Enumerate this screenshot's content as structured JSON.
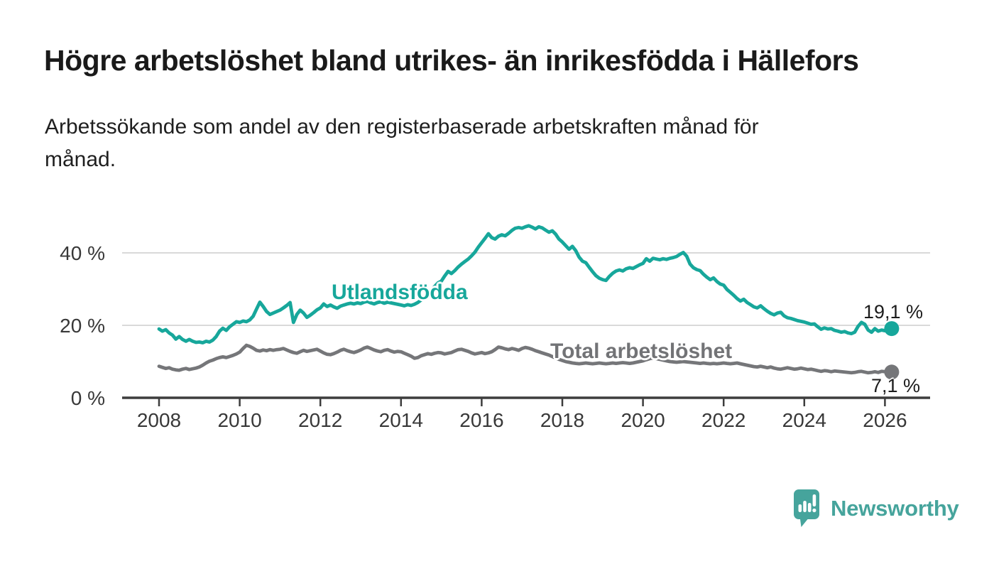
{
  "header": {
    "title": "Högre arbetslöshet bland utrikes- än inrikesfödda i Hällefors",
    "subtitle": "Arbetssökande som andel av den registerbaserade arbetskraften månad för\nmånad."
  },
  "annotations": {
    "series1_label": "Utlandsfödda",
    "series2_label": "Total arbetslöshet",
    "series1_end_value": "19,1 %",
    "series2_end_value": "7,1 %"
  },
  "logo": {
    "text": "Newsworthy",
    "icon": "speech-bubble-bar-chart-icon",
    "color": "#46a49c"
  },
  "colors": {
    "series1": "#17a79b",
    "series2": "#757679",
    "grid": "#d9d9d9",
    "axis": "#3d3d3d",
    "tick_text": "#383838"
  },
  "chart_data": {
    "type": "line",
    "title": "Högre arbetslöshet bland utrikes- än inrikesfödda i Hällefors",
    "xlabel": "",
    "ylabel": "Arbetssökande som andel av den registerbaserade arbetskraften",
    "x_unit": "month",
    "x_start": "2008-01",
    "x_end": "2026-03",
    "x_ticks": [
      2008,
      2010,
      2012,
      2014,
      2016,
      2018,
      2020,
      2022,
      2024,
      2026
    ],
    "y_ticks": [
      {
        "value": 0,
        "label": "0 %"
      },
      {
        "value": 20,
        "label": "20 %"
      },
      {
        "value": 40,
        "label": "40 %"
      }
    ],
    "ylim": [
      0,
      52
    ],
    "grid": "horizontal",
    "legend_position": "inline-labels",
    "series": [
      {
        "name": "Utlandsfödda",
        "color": "#17a79b",
        "end_label": "19,1 %",
        "end_value": 19.1,
        "values": [
          19.0,
          18.4,
          18.8,
          17.9,
          17.3,
          16.2,
          16.9,
          16.1,
          15.6,
          16.1,
          15.6,
          15.3,
          15.4,
          15.2,
          15.6,
          15.4,
          15.9,
          16.9,
          18.4,
          19.2,
          18.6,
          19.6,
          20.3,
          21.0,
          20.8,
          21.2,
          21.0,
          21.5,
          22.5,
          24.5,
          26.4,
          25.2,
          23.8,
          23.0,
          23.4,
          23.8,
          24.2,
          24.8,
          25.5,
          26.3,
          20.8,
          23.0,
          24.2,
          23.4,
          22.2,
          22.8,
          23.5,
          24.3,
          24.8,
          25.9,
          25.2,
          25.6,
          25.1,
          24.7,
          25.3,
          25.6,
          25.9,
          26.1,
          25.9,
          26.2,
          26.0,
          26.4,
          26.6,
          26.2,
          25.9,
          26.3,
          26.5,
          26.1,
          26.4,
          26.2,
          26.0,
          25.8,
          25.6,
          25.4,
          25.7,
          25.5,
          25.8,
          26.3,
          27.0,
          27.7,
          28.7,
          29.7,
          30.7,
          31.7,
          32.2,
          33.6,
          34.9,
          34.3,
          35.1,
          36.1,
          36.9,
          37.6,
          38.3,
          39.2,
          40.2,
          41.6,
          42.8,
          44.0,
          45.3,
          44.2,
          43.8,
          44.6,
          45.0,
          44.7,
          45.4,
          46.2,
          46.8,
          47.0,
          46.8,
          47.2,
          47.5,
          47.1,
          46.6,
          47.2,
          46.9,
          46.3,
          45.7,
          46.1,
          45.2,
          43.8,
          43.0,
          42.0,
          41.0,
          41.8,
          40.6,
          38.8,
          37.7,
          37.3,
          36.0,
          34.8,
          33.7,
          33.0,
          32.6,
          32.4,
          33.5,
          34.4,
          35.0,
          35.3,
          35.0,
          35.6,
          35.9,
          35.7,
          36.2,
          36.7,
          37.1,
          38.4,
          37.7,
          38.5,
          38.3,
          38.1,
          38.4,
          38.2,
          38.5,
          38.7,
          39.0,
          39.6,
          40.1,
          39.1,
          36.9,
          35.9,
          35.4,
          35.1,
          34.1,
          33.3,
          32.6,
          33.1,
          32.1,
          31.4,
          31.1,
          29.9,
          29.1,
          28.3,
          27.4,
          26.7,
          27.2,
          26.3,
          25.7,
          25.1,
          24.8,
          25.4,
          24.6,
          23.9,
          23.3,
          22.9,
          23.4,
          23.6,
          22.6,
          22.1,
          21.9,
          21.6,
          21.3,
          21.1,
          20.9,
          20.6,
          20.3,
          20.4,
          19.6,
          18.9,
          19.3,
          19.0,
          19.1,
          18.6,
          18.4,
          18.1,
          18.3,
          17.9,
          17.7,
          18.1,
          19.7,
          20.8,
          20.3,
          18.7,
          18.1,
          19.1,
          18.4,
          18.7,
          18.5,
          18.9,
          19.1
        ]
      },
      {
        "name": "Total arbetslöshet",
        "color": "#757679",
        "end_label": "7,1 %",
        "end_value": 7.1,
        "values": [
          8.7,
          8.4,
          8.1,
          8.3,
          7.9,
          7.7,
          7.6,
          7.9,
          8.1,
          7.8,
          8.0,
          8.2,
          8.5,
          9.0,
          9.6,
          10.1,
          10.4,
          10.8,
          11.1,
          11.3,
          11.1,
          11.4,
          11.7,
          12.1,
          12.6,
          13.6,
          14.5,
          14.2,
          13.7,
          13.1,
          12.9,
          13.2,
          13.0,
          13.3,
          13.1,
          13.3,
          13.4,
          13.6,
          13.2,
          12.8,
          12.5,
          12.3,
          12.7,
          13.1,
          12.8,
          13.0,
          13.2,
          13.4,
          12.9,
          12.4,
          12.0,
          11.9,
          12.2,
          12.6,
          13.1,
          13.4,
          13.0,
          12.7,
          12.5,
          12.8,
          13.2,
          13.7,
          14.0,
          13.6,
          13.2,
          12.9,
          12.7,
          13.1,
          13.3,
          12.9,
          12.6,
          12.8,
          12.7,
          12.3,
          11.9,
          11.5,
          10.9,
          11.1,
          11.6,
          11.9,
          12.2,
          12.0,
          12.3,
          12.5,
          12.4,
          12.1,
          12.3,
          12.5,
          12.9,
          13.3,
          13.4,
          13.1,
          12.8,
          12.4,
          12.1,
          12.3,
          12.5,
          12.2,
          12.4,
          12.7,
          13.3,
          14.0,
          13.8,
          13.5,
          13.3,
          13.6,
          13.4,
          13.1,
          13.6,
          13.9,
          13.7,
          13.4,
          13.0,
          12.7,
          12.4,
          12.1,
          11.8,
          11.4,
          11.0,
          10.6,
          10.3,
          10.0,
          9.8,
          9.6,
          9.5,
          9.4,
          9.5,
          9.6,
          9.5,
          9.4,
          9.5,
          9.6,
          9.5,
          9.4,
          9.5,
          9.6,
          9.5,
          9.6,
          9.7,
          9.6,
          9.5,
          9.6,
          9.8,
          10.0,
          10.2,
          10.5,
          10.8,
          11.0,
          10.8,
          10.6,
          10.4,
          10.2,
          10.0,
          9.9,
          9.8,
          9.9,
          10.0,
          9.9,
          9.8,
          9.7,
          9.6,
          9.5,
          9.6,
          9.5,
          9.4,
          9.5,
          9.4,
          9.5,
          9.6,
          9.5,
          9.4,
          9.5,
          9.6,
          9.4,
          9.2,
          9.0,
          8.8,
          8.6,
          8.5,
          8.7,
          8.5,
          8.3,
          8.5,
          8.2,
          8.0,
          7.9,
          8.1,
          8.3,
          8.1,
          7.9,
          8.0,
          8.2,
          8.0,
          7.8,
          7.9,
          7.7,
          7.5,
          7.3,
          7.5,
          7.4,
          7.2,
          7.4,
          7.3,
          7.2,
          7.1,
          7.0,
          6.9,
          7.0,
          7.2,
          7.3,
          7.1,
          6.9,
          7.0,
          7.2,
          7.0,
          7.3,
          7.2,
          7.0,
          7.1
        ]
      }
    ]
  }
}
